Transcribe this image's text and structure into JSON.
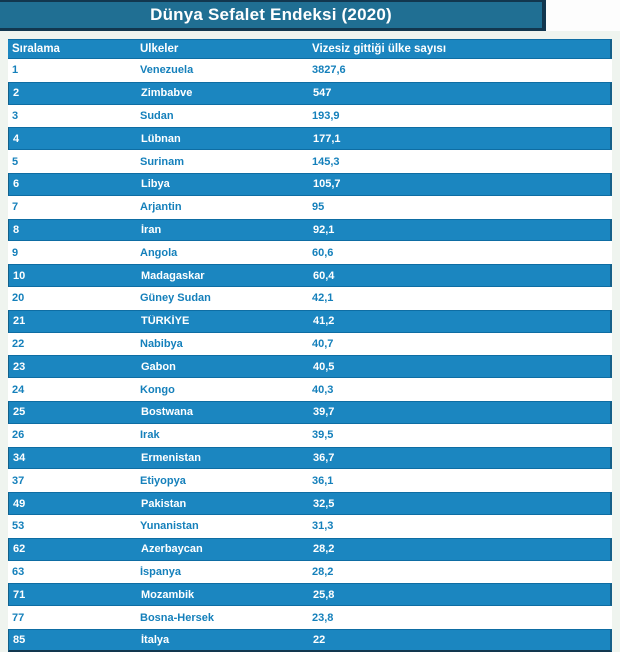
{
  "title": "Dünya Sefalet Endeksi (2020)",
  "chart_data": {
    "type": "table",
    "title": "Dünya Sefalet Endeksi (2020)",
    "columns": [
      "Sıralama",
      "Ülkeler",
      "Vizesiz gittiği ülke sayısı"
    ],
    "rows": [
      [
        "1",
        "Venezuela",
        "3827,6"
      ],
      [
        "2",
        "Zimbabve",
        "547"
      ],
      [
        "3",
        "Sudan",
        "193,9"
      ],
      [
        "4",
        "Lübnan",
        "177,1"
      ],
      [
        "5",
        "Surinam",
        "145,3"
      ],
      [
        "6",
        "Libya",
        "105,7"
      ],
      [
        "7",
        "Arjantin",
        "95"
      ],
      [
        "8",
        "İran",
        "92,1"
      ],
      [
        "9",
        "Angola",
        "60,6"
      ],
      [
        "10",
        "Madagaskar",
        "60,4"
      ],
      [
        "20",
        "Güney Sudan",
        "42,1"
      ],
      [
        "21",
        "TÜRKİYE",
        "41,2"
      ],
      [
        "22",
        "Nabibya",
        "40,7"
      ],
      [
        "23",
        "Gabon",
        "40,5"
      ],
      [
        "24",
        "Kongo",
        "40,3"
      ],
      [
        "25",
        "Bostwana",
        "39,7"
      ],
      [
        "26",
        "Irak",
        "39,5"
      ],
      [
        "34",
        "Ermenistan",
        "36,7"
      ],
      [
        "37",
        "Etiyopya",
        "36,1"
      ],
      [
        "49",
        "Pakistan",
        "32,5"
      ],
      [
        "53",
        "Yunanistan",
        "31,3"
      ],
      [
        "62",
        "Azerbaycan",
        "28,2"
      ],
      [
        "63",
        "İspanya",
        "28,2"
      ],
      [
        "71",
        "Mozambik",
        "25,8"
      ],
      [
        "77",
        "Bosna-Hersek",
        "23,8"
      ],
      [
        "85",
        "İtalya",
        "22"
      ]
    ]
  },
  "colors": {
    "row_blue": "#1b86c0",
    "title_teal": "#206f93",
    "border_dark": "#12374f",
    "text_blue": "#1580bb"
  }
}
